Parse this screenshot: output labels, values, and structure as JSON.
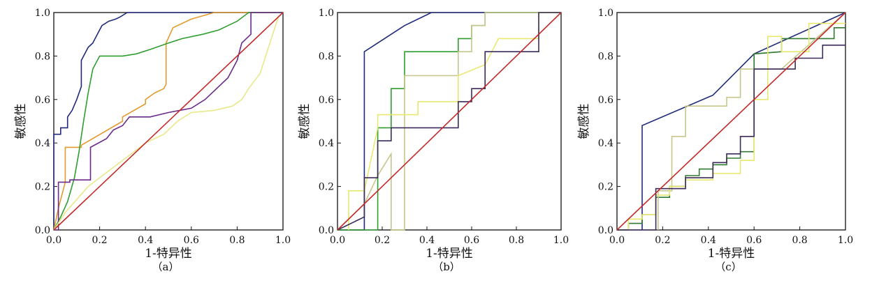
{
  "chart_data": [
    {
      "type": "line",
      "panel_label": "（a）",
      "xlabel": "1-特异性",
      "ylabel": "敏感性",
      "xlim": [
        0,
        1
      ],
      "ylim": [
        0,
        1
      ],
      "xticks": [
        "0.0",
        "0.2",
        "0.4",
        "0.6",
        "0.8",
        "1.0"
      ],
      "yticks": [
        "0.0",
        "0.2",
        "0.4",
        "0.6",
        "0.8",
        "1.0"
      ],
      "grid": false,
      "series": [
        {
          "color": "#1f2a7a",
          "x": [
            0,
            0,
            0.03,
            0.03,
            0.06,
            0.06,
            0.08,
            0.1,
            0.12,
            0.12,
            0.15,
            0.17,
            0.19,
            0.21,
            0.24,
            0.27,
            0.29,
            0.32,
            0.38,
            0.48,
            0.58,
            0.68,
            0.78,
            1
          ],
          "y": [
            0,
            0.44,
            0.44,
            0.47,
            0.47,
            0.52,
            0.55,
            0.6,
            0.66,
            0.78,
            0.84,
            0.86,
            0.9,
            0.94,
            0.96,
            0.97,
            0.98,
            1,
            1,
            1,
            1,
            1,
            1,
            1
          ]
        },
        {
          "color": "#e39a2e",
          "x": [
            0,
            0.02,
            0.05,
            0.05,
            0.12,
            0.12,
            0.3,
            0.3,
            0.4,
            0.4,
            0.44,
            0.48,
            0.49,
            0.49,
            0.52,
            0.6,
            0.7,
            0.8,
            0.85,
            0.88,
            1
          ],
          "y": [
            0,
            0.1,
            0.22,
            0.38,
            0.38,
            0.39,
            0.5,
            0.52,
            0.58,
            0.6,
            0.63,
            0.65,
            0.67,
            0.86,
            0.93,
            0.97,
            1,
            1,
            1,
            1,
            1
          ]
        },
        {
          "color": "#2f9e2f",
          "x": [
            0,
            0.03,
            0.06,
            0.09,
            0.11,
            0.13,
            0.15,
            0.17,
            0.2,
            0.3,
            0.36,
            0.42,
            0.5,
            0.56,
            0.65,
            0.72,
            0.76,
            0.8,
            0.85,
            0.87,
            1
          ],
          "y": [
            0,
            0.06,
            0.13,
            0.24,
            0.36,
            0.5,
            0.63,
            0.74,
            0.8,
            0.8,
            0.81,
            0.83,
            0.86,
            0.88,
            0.9,
            0.92,
            0.94,
            0.96,
            1,
            1,
            1
          ]
        },
        {
          "color": "#6a2a8a",
          "x": [
            0,
            0.02,
            0.02,
            0.07,
            0.07,
            0.16,
            0.16,
            0.23,
            0.26,
            0.3,
            0.33,
            0.42,
            0.5,
            0.6,
            0.66,
            0.72,
            0.76,
            0.8,
            0.82,
            0.86,
            0.86,
            1
          ],
          "y": [
            0,
            0,
            0.22,
            0.22,
            0.23,
            0.23,
            0.38,
            0.42,
            0.46,
            0.48,
            0.52,
            0.52,
            0.54,
            0.56,
            0.6,
            0.66,
            0.7,
            0.78,
            0.86,
            0.9,
            1,
            1
          ]
        },
        {
          "color": "#e8e88a",
          "x": [
            0,
            0.05,
            0.1,
            0.15,
            0.2,
            0.3,
            0.4,
            0.48,
            0.54,
            0.6,
            0.7,
            0.78,
            0.82,
            0.85,
            0.9,
            0.94,
            0.98,
            1
          ],
          "y": [
            0,
            0.08,
            0.14,
            0.2,
            0.24,
            0.32,
            0.4,
            0.44,
            0.5,
            0.54,
            0.55,
            0.57,
            0.6,
            0.65,
            0.72,
            0.85,
            0.98,
            1
          ]
        },
        {
          "color": "#c22a2a",
          "x": [
            0,
            1
          ],
          "y": [
            0,
            1
          ]
        }
      ]
    },
    {
      "type": "line",
      "panel_label": "（b）",
      "xlabel": "1-特异性",
      "ylabel": "敏感性",
      "xlim": [
        0,
        1
      ],
      "ylim": [
        0,
        1
      ],
      "xticks": [
        "0.0",
        "0.2",
        "0.4",
        "0.6",
        "0.8",
        "1.0"
      ],
      "yticks": [
        "0.0",
        "0.2",
        "0.4",
        "0.6",
        "0.8",
        "1.0"
      ],
      "grid": false,
      "series": [
        {
          "color": "#1f2a7a",
          "x": [
            0,
            0.12,
            0.12,
            0.18,
            0.24,
            0.3,
            0.36,
            0.42,
            1
          ],
          "y": [
            0,
            0,
            0.82,
            0.86,
            0.9,
            0.94,
            0.97,
            1,
            1
          ]
        },
        {
          "color": "#2f9e2f",
          "x": [
            0,
            0.18,
            0.18,
            0.24,
            0.24,
            0.3,
            0.3,
            0.54,
            0.54,
            0.6,
            0.6,
            0.66,
            0.66,
            0.72,
            0.72,
            1
          ],
          "y": [
            0,
            0,
            0.47,
            0.47,
            0.65,
            0.65,
            0.82,
            0.82,
            0.88,
            0.88,
            0.94,
            0.94,
            1,
            1,
            1,
            1
          ]
        },
        {
          "color": "#c6c68a",
          "x": [
            0,
            0.06,
            0.12,
            0.18,
            0.24,
            0.24,
            0.3,
            0.3,
            0.54,
            0.54,
            0.6,
            0.6,
            0.66,
            0.66,
            0.9,
            0.9,
            1
          ],
          "y": [
            0,
            0.06,
            0.12,
            0.25,
            0.35,
            0,
            0,
            0.71,
            0.71,
            0.82,
            0.82,
            0.94,
            0.94,
            1,
            1,
            1,
            1
          ]
        },
        {
          "color": "#e8e870",
          "x": [
            0.05,
            0.05,
            0.12,
            0.18,
            0.18,
            0.24,
            0.36,
            0.36,
            0.54,
            0.54,
            0.66,
            0.72,
            0.9,
            0.9,
            1
          ],
          "y": [
            0,
            0.18,
            0.18,
            0.47,
            0.53,
            0.53,
            0.53,
            0.59,
            0.59,
            0.71,
            0.76,
            0.88,
            0.88,
            1,
            1
          ]
        },
        {
          "color": "#3b2a5a",
          "x": [
            0,
            0.12,
            0.12,
            0.18,
            0.18,
            0.24,
            0.24,
            0.54,
            0.54,
            0.6,
            0.6,
            0.66,
            0.66,
            0.9,
            0.9,
            1
          ],
          "y": [
            0,
            0.06,
            0.24,
            0.24,
            0.41,
            0.41,
            0.47,
            0.47,
            0.59,
            0.59,
            0.65,
            0.65,
            0.82,
            0.82,
            1,
            1
          ]
        },
        {
          "color": "#c22a2a",
          "x": [
            0,
            1
          ],
          "y": [
            0,
            1
          ]
        }
      ]
    },
    {
      "type": "line",
      "panel_label": "（c）",
      "xlabel": "1-特异性",
      "ylabel": "敏感性",
      "xlim": [
        0,
        1
      ],
      "ylim": [
        0,
        1
      ],
      "xticks": [
        "0.0",
        "0.2",
        "0.4",
        "0.6",
        "0.8",
        "1.0"
      ],
      "yticks": [
        "0.0",
        "0.2",
        "0.4",
        "0.6",
        "0.8",
        "1.0"
      ],
      "grid": false,
      "series": [
        {
          "color": "#1f2a7a",
          "x": [
            0.11,
            0.11,
            0.42,
            0.6,
            1
          ],
          "y": [
            0,
            0.48,
            0.62,
            0.81,
            1
          ]
        },
        {
          "color": "#2f7a2f",
          "x": [
            0,
            0.05,
            0.05,
            0.11,
            0.11,
            0.17,
            0.17,
            0.23,
            0.23,
            0.3,
            0.3,
            0.36,
            0.36,
            0.42,
            0.42,
            0.48,
            0.48,
            0.54,
            0.54,
            0.6,
            0.6,
            0.72,
            0.72,
            0.95,
            0.95,
            1
          ],
          "y": [
            0,
            0,
            0.03,
            0.03,
            0.07,
            0.07,
            0.15,
            0.15,
            0.2,
            0.2,
            0.25,
            0.25,
            0.28,
            0.28,
            0.3,
            0.3,
            0.33,
            0.33,
            0.36,
            0.36,
            0.81,
            0.82,
            0.88,
            0.88,
            0.93,
            0.93
          ]
        },
        {
          "color": "#c6c68a",
          "x": [
            0.18,
            0.18,
            0.24,
            0.24,
            0.3,
            0.3,
            0.48,
            0.48,
            0.54,
            0.54,
            0.72,
            1
          ],
          "y": [
            0,
            0.18,
            0.18,
            0.43,
            0.43,
            0.57,
            0.57,
            0.61,
            0.61,
            0.74,
            0.74,
            1
          ]
        },
        {
          "color": "#e8e870",
          "x": [
            0.05,
            0.05,
            0.11,
            0.11,
            0.17,
            0.17,
            0.23,
            0.23,
            0.3,
            0.3,
            0.42,
            0.42,
            0.54,
            0.54,
            0.6,
            0.6,
            0.66,
            0.66,
            0.72,
            0.72,
            0.84,
            0.84,
            1
          ],
          "y": [
            0,
            0.05,
            0.05,
            0.07,
            0.07,
            0.16,
            0.16,
            0.2,
            0.2,
            0.23,
            0.23,
            0.26,
            0.26,
            0.32,
            0.32,
            0.6,
            0.6,
            0.89,
            0.89,
            0.82,
            0.82,
            0.95,
            0.95
          ]
        },
        {
          "color": "#3b2a5a",
          "x": [
            0,
            0.17,
            0.17,
            0.3,
            0.3,
            0.42,
            0.42,
            0.48,
            0.48,
            0.54,
            0.54,
            0.6,
            0.6,
            0.78,
            0.78,
            0.9,
            0.9,
            1
          ],
          "y": [
            0,
            0,
            0.19,
            0.19,
            0.24,
            0.24,
            0.31,
            0.31,
            0.35,
            0.35,
            0.43,
            0.43,
            0.74,
            0.74,
            0.79,
            0.79,
            0.85,
            0.85
          ]
        },
        {
          "color": "#c22a2a",
          "x": [
            0,
            1
          ],
          "y": [
            0,
            1
          ]
        }
      ]
    }
  ]
}
